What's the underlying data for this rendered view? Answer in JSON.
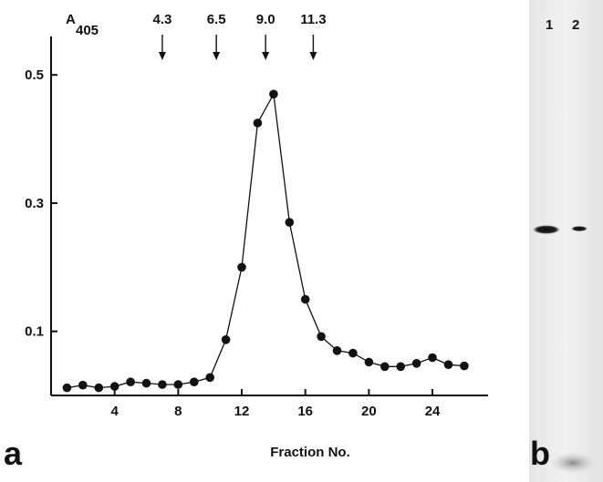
{
  "chart_data": {
    "type": "line",
    "ylabel": "A",
    "ylabel_subscript": "405",
    "xlabel": "Fraction No.",
    "xlim": [
      0,
      27.5
    ],
    "ylim": [
      0,
      0.56
    ],
    "xticks": [
      4,
      8,
      12,
      16,
      20,
      24
    ],
    "xtick_labels": [
      "4",
      "8",
      "12",
      "16",
      "20",
      "24"
    ],
    "yticks": [
      0.1,
      0.3,
      0.5
    ],
    "ytick_labels": [
      "0.1",
      "0.3",
      "0.5"
    ],
    "grid": false,
    "series": [
      {
        "x": [
          1,
          2,
          3,
          4,
          5,
          6,
          7,
          8,
          9,
          10,
          11,
          12,
          13,
          14,
          15,
          16,
          17,
          18,
          19,
          20,
          21,
          22,
          23,
          24,
          25,
          26
        ],
        "values": [
          0.012,
          0.016,
          0.012,
          0.014,
          0.021,
          0.019,
          0.017,
          0.017,
          0.021,
          0.028,
          0.087,
          0.2,
          0.425,
          0.47,
          0.27,
          0.15,
          0.092,
          0.07,
          0.066,
          0.052,
          0.045,
          0.045,
          0.05,
          0.059,
          0.048,
          0.046
        ]
      }
    ],
    "markers": [
      {
        "label": "4.3",
        "x": 7.0
      },
      {
        "label": "6.5",
        "x": 10.4
      },
      {
        "label": "9.0",
        "x": 13.5
      },
      {
        "label": "11.3",
        "x": 16.5
      }
    ]
  },
  "panel_a_label": "a",
  "panel_b_label": "b",
  "lanes": [
    "1",
    "2"
  ],
  "blot": {
    "band_lane1_intensity": 0.9,
    "band_lane2_intensity": 0.35
  }
}
